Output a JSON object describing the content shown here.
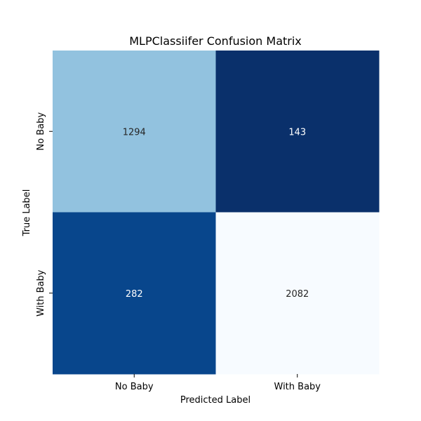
{
  "chart_data": {
    "type": "heatmap",
    "title": "MLPClassiifer Confusion Matrix",
    "xlabel": "Predicted Label",
    "ylabel": "True Label",
    "x_categories": [
      "No Baby",
      "With Baby"
    ],
    "y_categories": [
      "No Baby",
      "With Baby"
    ],
    "values": [
      [
        1294,
        143
      ],
      [
        282,
        2082
      ]
    ],
    "colormap": "Blues",
    "colorbar": false,
    "annotated": true,
    "cell_colors": [
      [
        "#92c2df",
        "#0a306b"
      ],
      [
        "#08468c",
        "#f7fbff"
      ]
    ],
    "annotation_colors": [
      [
        "#262626",
        "#ffffff"
      ],
      [
        "#ffffff",
        "#262626"
      ]
    ]
  }
}
